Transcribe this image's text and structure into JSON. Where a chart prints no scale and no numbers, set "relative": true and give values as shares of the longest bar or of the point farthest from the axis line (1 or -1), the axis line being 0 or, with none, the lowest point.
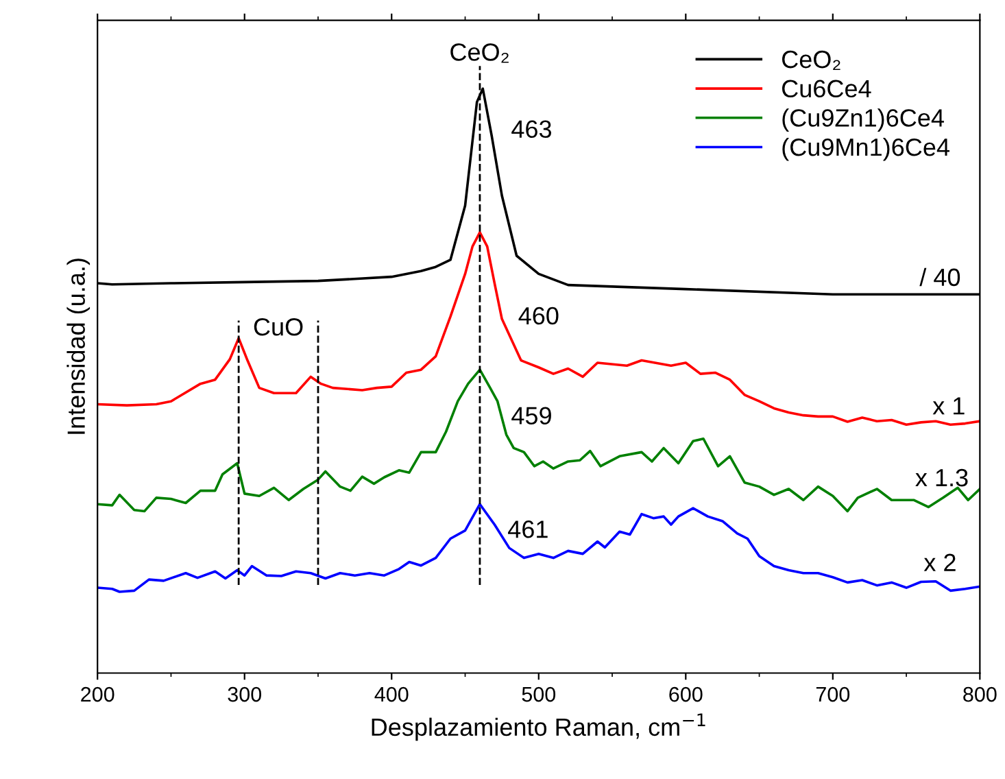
{
  "chart_data": {
    "type": "line",
    "relative": true,
    "xlabel": "Desplazamiento Raman, cm$^{−1}$",
    "ylabel": "Intensidad (u.a.)",
    "xlim": [
      200,
      800
    ],
    "xticks": [
      200,
      300,
      400,
      500,
      600,
      700,
      800
    ],
    "legend": "top right",
    "line_style": "solid",
    "series": [
      {
        "name": "CeO₂",
        "color": "#000000",
        "x": [
          200,
          210,
          250,
          300,
          350,
          400,
          420,
          430,
          440,
          450,
          458,
          462,
          468,
          475,
          485,
          500,
          520,
          600,
          700,
          800
        ],
        "values": [
          0.667,
          0.665,
          0.667,
          0.669,
          0.671,
          0.678,
          0.688,
          0.695,
          0.707,
          0.8,
          0.977,
          1.0,
          0.92,
          0.817,
          0.714,
          0.683,
          0.664,
          0.657,
          0.648,
          0.648
        ]
      },
      {
        "name": "Cu6Ce4",
        "color": "#ff0000",
        "x": [
          200,
          220,
          240,
          250,
          270,
          280,
          290,
          296,
          302,
          310,
          320,
          335,
          345,
          352,
          360,
          380,
          390,
          400,
          410,
          420,
          430,
          440,
          450,
          455,
          460,
          465,
          470,
          475,
          488,
          500,
          510,
          520,
          530,
          540,
          560,
          570,
          590,
          600,
          610,
          620,
          630,
          640,
          650,
          660,
          670,
          680,
          690,
          700,
          710,
          720,
          730,
          740,
          750,
          760,
          770,
          780,
          790,
          800
        ],
        "values": [
          0.46,
          0.458,
          0.46,
          0.465,
          0.495,
          0.502,
          0.537,
          0.573,
          0.535,
          0.488,
          0.479,
          0.479,
          0.507,
          0.495,
          0.488,
          0.484,
          0.488,
          0.49,
          0.514,
          0.519,
          0.542,
          0.61,
          0.683,
          0.73,
          0.754,
          0.73,
          0.667,
          0.606,
          0.535,
          0.523,
          0.512,
          0.521,
          0.507,
          0.531,
          0.526,
          0.535,
          0.526,
          0.531,
          0.512,
          0.514,
          0.502,
          0.476,
          0.465,
          0.453,
          0.446,
          0.441,
          0.439,
          0.439,
          0.43,
          0.437,
          0.431,
          0.433,
          0.425,
          0.429,
          0.431,
          0.425,
          0.427,
          0.431
        ]
      },
      {
        "name": "(Cu9Zn1)6Ce4",
        "color": "#008000",
        "x": [
          200,
          210,
          215,
          225,
          232,
          240,
          250,
          260,
          270,
          280,
          285,
          295,
          300,
          310,
          320,
          330,
          340,
          350,
          355,
          365,
          372,
          380,
          388,
          395,
          405,
          412,
          420,
          430,
          437,
          445,
          452,
          460,
          467,
          472,
          478,
          483,
          490,
          497,
          503,
          510,
          520,
          528,
          535,
          542,
          555,
          570,
          577,
          585,
          595,
          605,
          612,
          622,
          630,
          640,
          650,
          660,
          670,
          680,
          690,
          700,
          710,
          717,
          730,
          740,
          755,
          765,
          775,
          785,
          792,
          800
        ],
        "values": [
          0.289,
          0.287,
          0.305,
          0.279,
          0.277,
          0.3,
          0.298,
          0.291,
          0.312,
          0.312,
          0.34,
          0.359,
          0.307,
          0.303,
          0.317,
          0.296,
          0.315,
          0.331,
          0.345,
          0.319,
          0.312,
          0.336,
          0.324,
          0.335,
          0.347,
          0.343,
          0.378,
          0.378,
          0.413,
          0.465,
          0.495,
          0.519,
          0.488,
          0.465,
          0.408,
          0.385,
          0.378,
          0.354,
          0.362,
          0.35,
          0.362,
          0.364,
          0.38,
          0.354,
          0.371,
          0.378,
          0.362,
          0.385,
          0.359,
          0.397,
          0.401,
          0.354,
          0.371,
          0.326,
          0.319,
          0.305,
          0.315,
          0.296,
          0.319,
          0.303,
          0.277,
          0.3,
          0.315,
          0.296,
          0.296,
          0.284,
          0.3,
          0.317,
          0.296,
          0.315
        ]
      },
      {
        "name": "(Cu9Mn1)6Ce4",
        "color": "#0000ff",
        "x": [
          200,
          210,
          215,
          225,
          235,
          245,
          260,
          268,
          280,
          287,
          295,
          300,
          305,
          315,
          325,
          335,
          345,
          355,
          365,
          375,
          385,
          395,
          405,
          412,
          420,
          430,
          440,
          450,
          460,
          470,
          480,
          490,
          500,
          510,
          520,
          530,
          540,
          545,
          555,
          562,
          570,
          578,
          585,
          590,
          595,
          605,
          615,
          625,
          635,
          642,
          650,
          660,
          670,
          680,
          690,
          700,
          710,
          720,
          730,
          740,
          750,
          760,
          770,
          780,
          790,
          800
        ],
        "values": [
          0.146,
          0.144,
          0.139,
          0.141,
          0.16,
          0.158,
          0.171,
          0.163,
          0.174,
          0.162,
          0.176,
          0.167,
          0.183,
          0.167,
          0.166,
          0.174,
          0.171,
          0.162,
          0.171,
          0.167,
          0.171,
          0.167,
          0.178,
          0.19,
          0.184,
          0.197,
          0.23,
          0.244,
          0.289,
          0.254,
          0.214,
          0.197,
          0.204,
          0.197,
          0.209,
          0.204,
          0.225,
          0.215,
          0.242,
          0.237,
          0.272,
          0.265,
          0.268,
          0.254,
          0.268,
          0.282,
          0.268,
          0.26,
          0.239,
          0.23,
          0.2,
          0.183,
          0.176,
          0.171,
          0.171,
          0.164,
          0.155,
          0.159,
          0.15,
          0.155,
          0.146,
          0.156,
          0.157,
          0.141,
          0.144,
          0.148
        ]
      }
    ],
    "ref_lines": [
      {
        "axis": "x",
        "value": 296,
        "line_style": "dashed",
        "color": "#000000"
      },
      {
        "axis": "x",
        "value": 350,
        "line_style": "dashed",
        "color": "#000000"
      },
      {
        "axis": "x",
        "value": 460,
        "line_style": "dashed",
        "color": "#000000"
      }
    ],
    "annotations": [
      "CeO₂",
      "CuO",
      "463",
      "460",
      "459",
      "461",
      "/ 40",
      "x 1",
      "x 1.3",
      "x 2"
    ]
  }
}
